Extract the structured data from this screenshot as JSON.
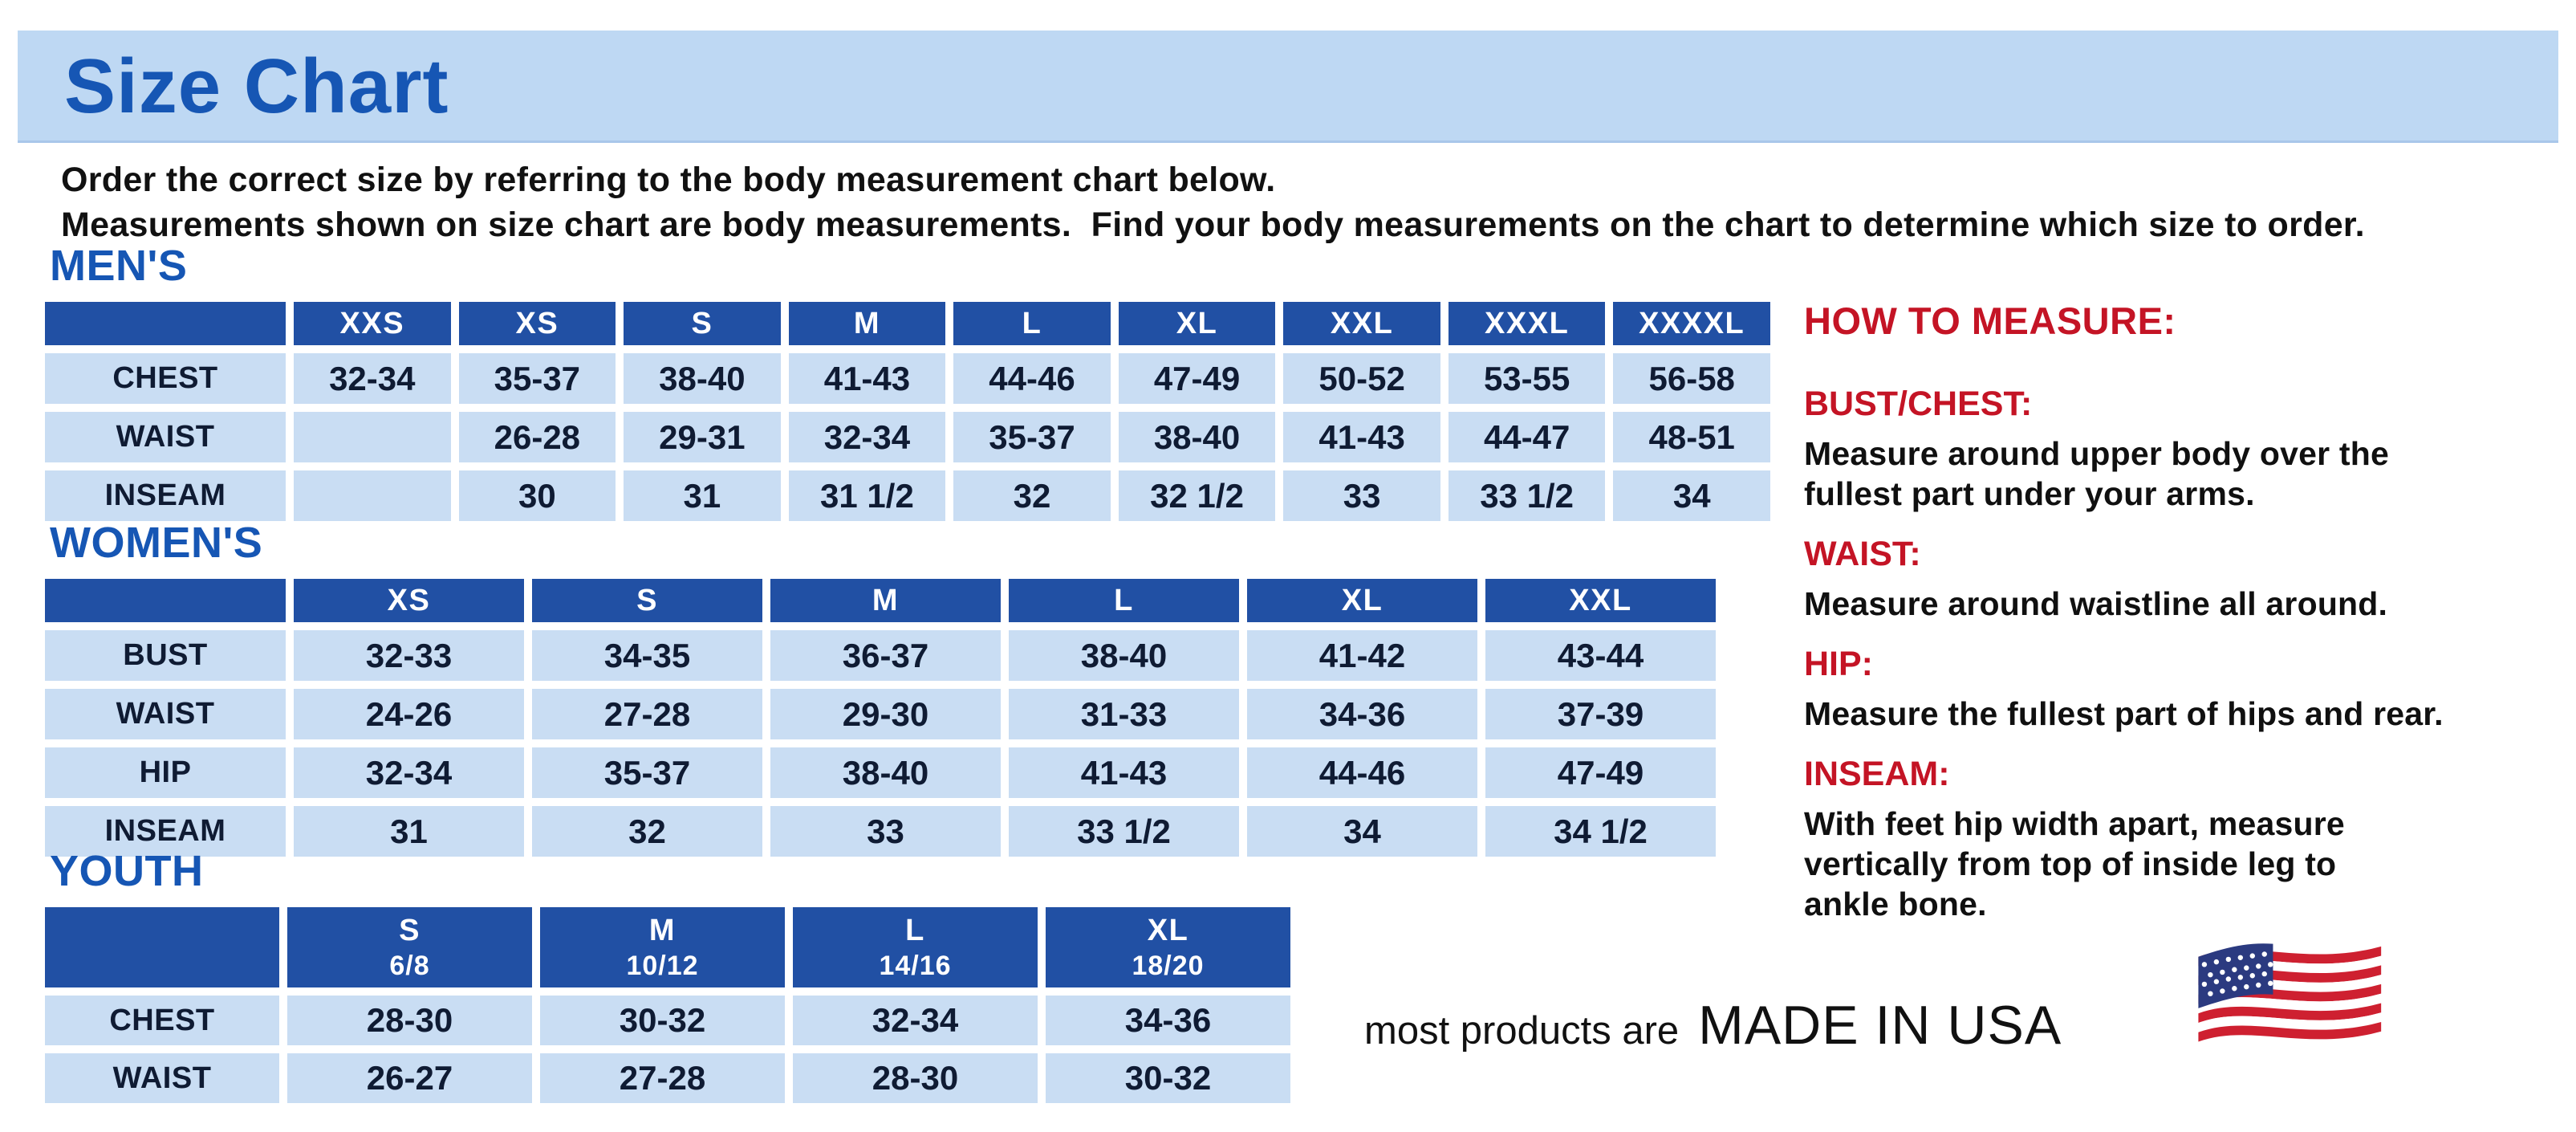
{
  "page": {
    "title": "Size Chart",
    "intro_line1": "Order the correct size by referring to the body measurement chart below.",
    "intro_line2": "Measurements shown on size chart are body measurements.  Find your body measurements on the chart to determine which size to order."
  },
  "colors": {
    "banner_bg": "#BED8F3",
    "title_blue": "#1656B4",
    "table_header_blue": "#2150A4",
    "cell_light_blue": "#C9DDF3",
    "data_text_navy": "#0F1B33",
    "accent_red": "#C41425",
    "flag_red": "#CE2030",
    "flag_blue": "#2B3A80"
  },
  "tables": {
    "mens": {
      "heading": "MEN'S",
      "columns": [
        "XXS",
        "XS",
        "S",
        "M",
        "L",
        "XL",
        "XXL",
        "XXXL",
        "XXXXL"
      ],
      "rows": [
        {
          "label": "CHEST",
          "values": [
            "32-34",
            "35-37",
            "38-40",
            "41-43",
            "44-46",
            "47-49",
            "50-52",
            "53-55",
            "56-58"
          ]
        },
        {
          "label": "WAIST",
          "values": [
            "",
            "26-28",
            "29-31",
            "32-34",
            "35-37",
            "38-40",
            "41-43",
            "44-47",
            "48-51"
          ]
        },
        {
          "label": "INSEAM",
          "values": [
            "",
            "30",
            "31",
            "31 1/2",
            "32",
            "32 1/2",
            "33",
            "33 1/2",
            "34"
          ]
        }
      ]
    },
    "womens": {
      "heading": "WOMEN'S",
      "columns": [
        "XS",
        "S",
        "M",
        "L",
        "XL",
        "XXL"
      ],
      "rows": [
        {
          "label": "BUST",
          "values": [
            "32-33",
            "34-35",
            "36-37",
            "38-40",
            "41-42",
            "43-44"
          ]
        },
        {
          "label": "WAIST",
          "values": [
            "24-26",
            "27-28",
            "29-30",
            "31-33",
            "34-36",
            "37-39"
          ]
        },
        {
          "label": "HIP",
          "values": [
            "32-34",
            "35-37",
            "38-40",
            "41-43",
            "44-46",
            "47-49"
          ]
        },
        {
          "label": "INSEAM",
          "values": [
            "31",
            "32",
            "33",
            "33 1/2",
            "34",
            "34 1/2"
          ]
        }
      ]
    },
    "youth": {
      "heading": "YOUTH",
      "columns": [
        {
          "label": "S",
          "sub": "6/8"
        },
        {
          "label": "M",
          "sub": "10/12"
        },
        {
          "label": "L",
          "sub": "14/16"
        },
        {
          "label": "XL",
          "sub": "18/20"
        }
      ],
      "rows": [
        {
          "label": "CHEST",
          "values": [
            "28-30",
            "30-32",
            "32-34",
            "34-36"
          ]
        },
        {
          "label": "WAIST",
          "values": [
            "26-27",
            "27-28",
            "28-30",
            "30-32"
          ]
        }
      ]
    }
  },
  "how_to_measure": {
    "heading": "HOW TO MEASURE:",
    "items": [
      {
        "term": "BUST/CHEST:",
        "desc_lines": [
          "Measure around upper body over the",
          "fullest part under your arms."
        ]
      },
      {
        "term": "WAIST:",
        "desc_lines": [
          "Measure around waistline all around."
        ]
      },
      {
        "term": "HIP:",
        "desc_lines": [
          "Measure the fullest part of hips and rear."
        ]
      },
      {
        "term": "INSEAM:",
        "desc_lines": [
          "With feet hip width apart, measure",
          "vertically from top of inside leg to",
          "ankle bone."
        ]
      }
    ]
  },
  "footer": {
    "prefix": "most products are",
    "label": "MADE IN USA",
    "flag_icon": "us-flag-icon"
  }
}
